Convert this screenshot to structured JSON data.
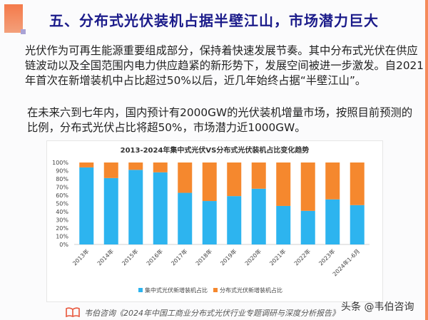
{
  "header": {
    "title": "五、分布式光伏装机占据半壁江山，市场潜力巨大"
  },
  "paragraphs": [
    {
      "lines": [
        "光伏作为可再生能源重要组成部分，保持着快速发展节奏。其中分布式光伏在供应",
        "链波动以及全国范围内电力供应趋紧的新形势下，发展空间被进一步激发。自2021",
        "年首次在新增装机中占比超过50%以后，近几年始终占据“半壁江山”。"
      ]
    },
    {
      "lines": [
        "在未来六到七年内，国内预计有2000GW的光伏装机增量市场，按照目前预测的",
        "比例，分布式光伏占比将超50%，市场潜力近1000GW。"
      ]
    }
  ],
  "chart_data": {
    "type": "bar",
    "stacked": true,
    "title": "2013-2024年集中式光伏VS分布式光伏装机占比变化趋势",
    "categories": [
      "2013年",
      "2014年",
      "2015年",
      "2016年",
      "2017年",
      "2018年",
      "2019年",
      "2020年",
      "2021年",
      "2022年",
      "2023年",
      "2024年1-6月"
    ],
    "series": [
      {
        "name": "集中式光伏新增装机占比",
        "color": "#2db4ef",
        "values": [
          94,
          81,
          91,
          88,
          63,
          53,
          59,
          68,
          47,
          41,
          55,
          48
        ]
      },
      {
        "name": "分布式光伏新增装机占比",
        "color": "#f5882e",
        "values": [
          6,
          19,
          9,
          12,
          37,
          47,
          41,
          32,
          53,
          59,
          45,
          52
        ]
      }
    ],
    "yticks": [
      "0%",
      "10%",
      "20%",
      "30%",
      "40%",
      "50%",
      "60%",
      "70%",
      "80%",
      "90%",
      "100%"
    ],
    "ylim": [
      0,
      100
    ],
    "grid": false,
    "legend": "bottom"
  },
  "footer": {
    "source": "韦伯咨询《2024年中国工商业分布式光伏行业专题调研与深度分析报告》",
    "watermark": "头条 @韦伯咨询"
  },
  "colors": {
    "title": "#1b1b8a",
    "accent": "#f47a4a"
  }
}
